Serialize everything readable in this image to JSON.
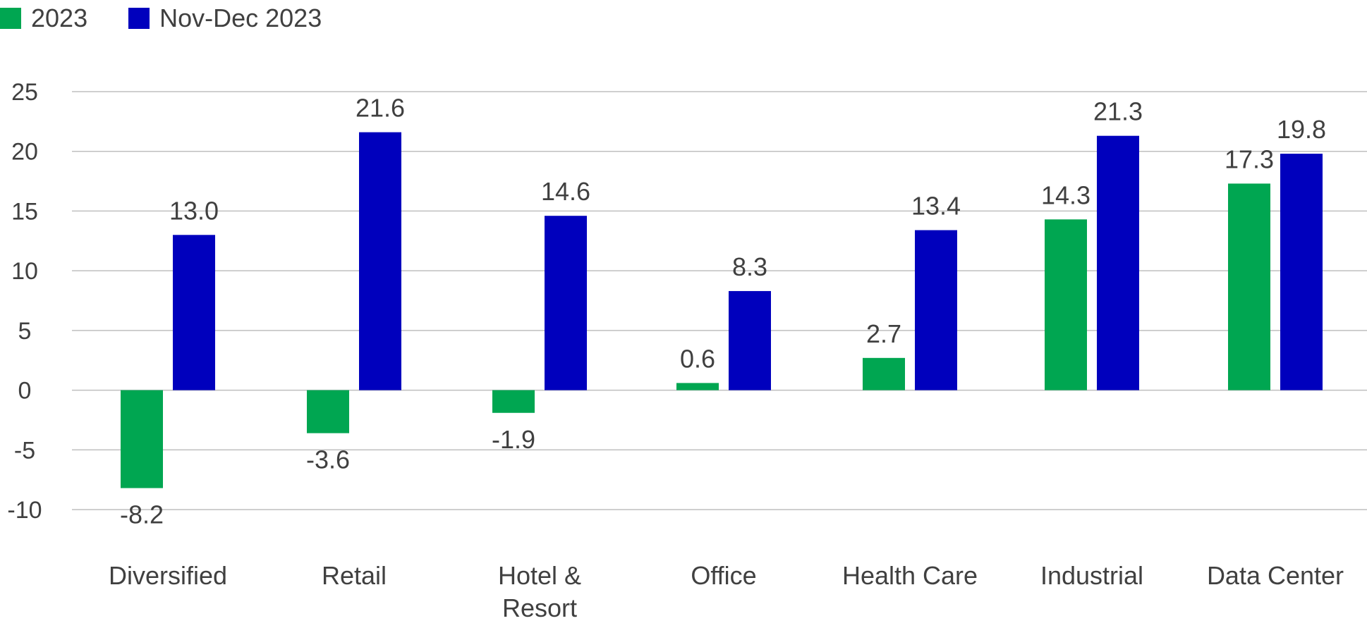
{
  "chart_data": {
    "type": "bar",
    "title": "",
    "xlabel": "",
    "ylabel": "",
    "ylim": [
      -10,
      25
    ],
    "yticks": [
      25,
      20,
      15,
      10,
      5,
      0,
      -5,
      -10
    ],
    "grid": true,
    "legend_position": "top-left",
    "categories": [
      [
        "Diversified"
      ],
      [
        "Retail"
      ],
      [
        "Hotel &",
        "Resort"
      ],
      [
        "Office"
      ],
      [
        "Health Care"
      ],
      [
        "Industrial"
      ],
      [
        "Data Center"
      ]
    ],
    "series": [
      {
        "name": "2023",
        "color": "#00A651",
        "values": [
          -8.2,
          -3.6,
          -1.9,
          0.6,
          2.7,
          14.3,
          17.3
        ],
        "labels": [
          "-8.2",
          "-3.6",
          "-1.9",
          "0.6",
          "2.7",
          "14.3",
          "17.3"
        ]
      },
      {
        "name": "Nov-Dec 2023",
        "color": "#0000BD",
        "values": [
          13.0,
          21.6,
          14.6,
          8.3,
          13.4,
          21.3,
          19.8
        ],
        "labels": [
          "13.0",
          "21.6",
          "14.6",
          "8.3",
          "13.4",
          "21.3",
          "19.8"
        ]
      }
    ]
  }
}
